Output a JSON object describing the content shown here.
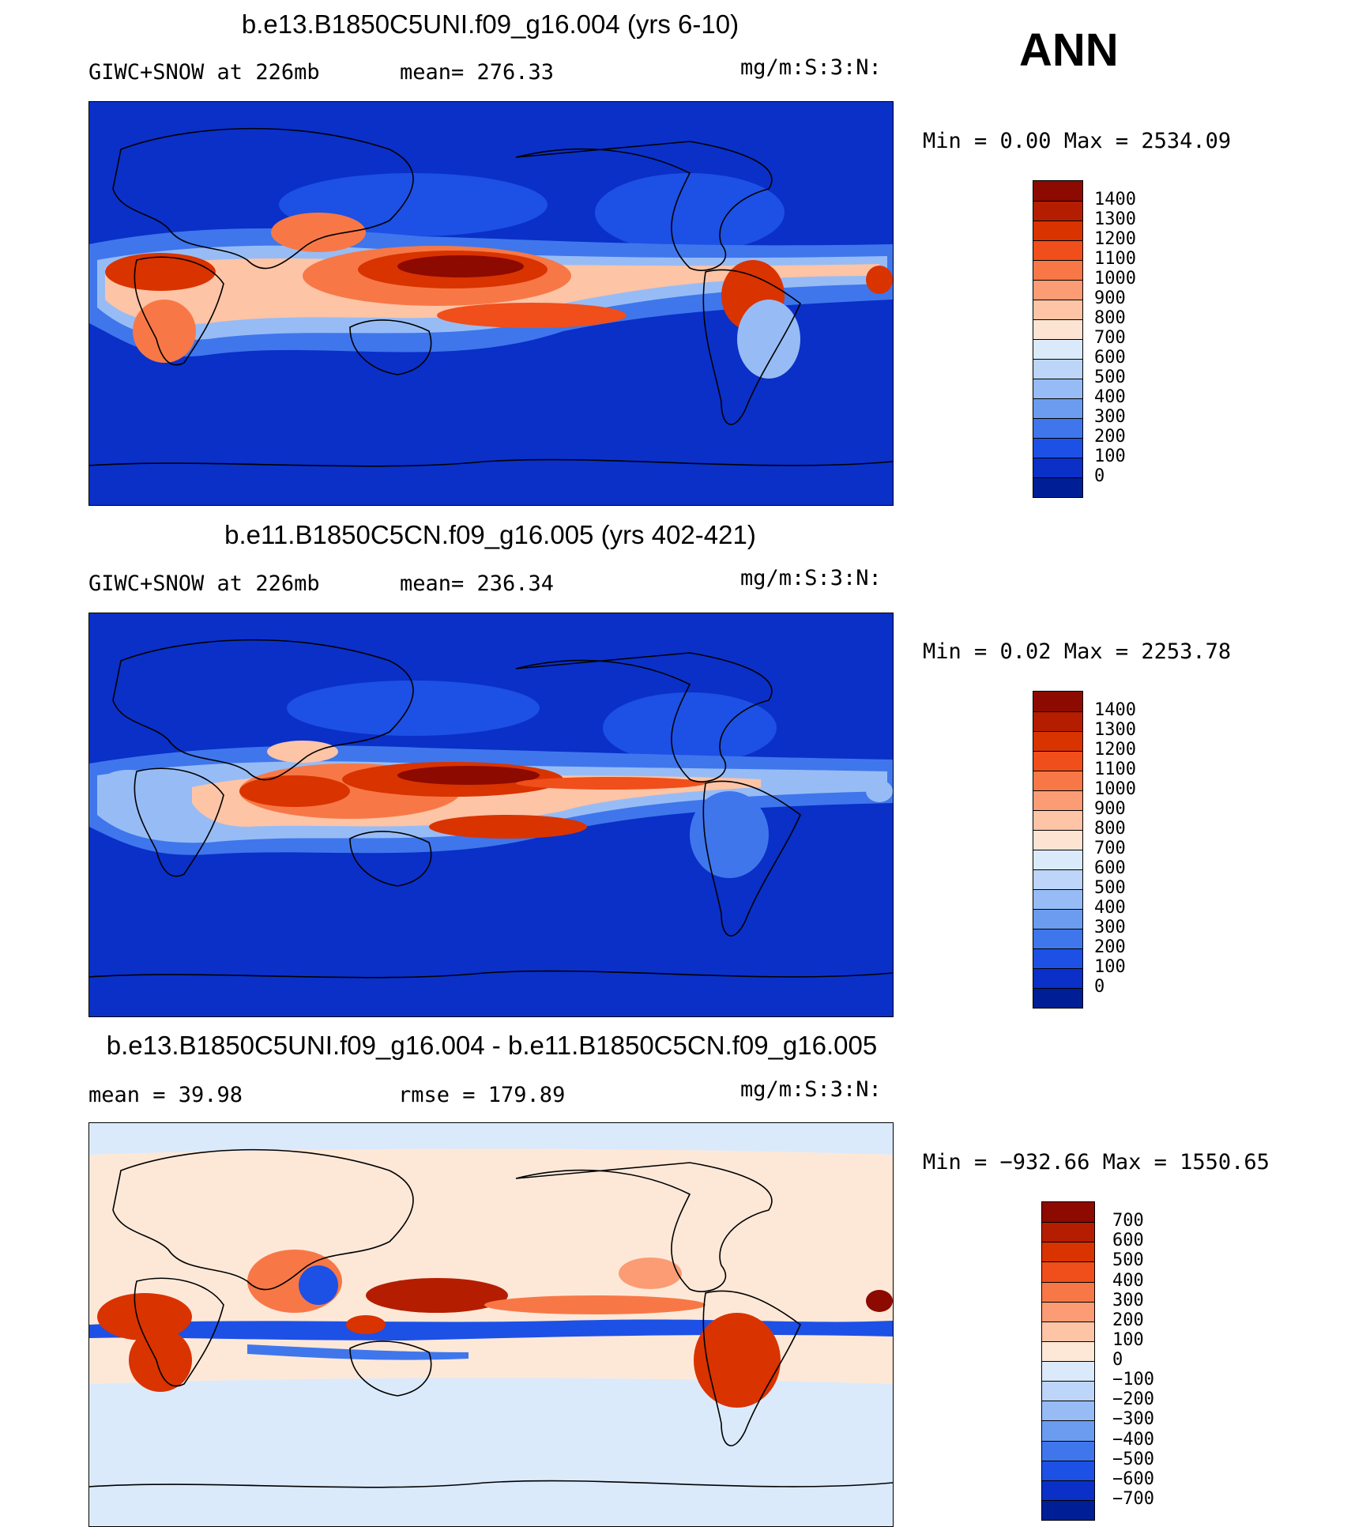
{
  "season": "ANN",
  "units": "mg/m:S:3:N:",
  "panels": [
    {
      "title": "b.e13.B1850C5UNI.f09_g16.004 (yrs 6-10)",
      "subtitle_left": "GIWC+SNOW at 226mb",
      "subtitle_mid": "mean= 276.33",
      "units": "mg/m:S:3:N:",
      "minmax": "Min =    0.00 Max = 2534.09"
    },
    {
      "title": "b.e11.B1850C5CN.f09_g16.005 (yrs 402-421)",
      "subtitle_left": "GIWC+SNOW at 226mb",
      "subtitle_mid": "mean= 236.34",
      "units": "mg/m:S:3:N:",
      "minmax": "Min =    0.02 Max = 2253.78"
    },
    {
      "title": "b.e13.B1850C5UNI.f09_g16.004 - b.e11.B1850C5CN.f09_g16.005",
      "subtitle_left": "mean =   39.98",
      "subtitle_mid": "rmse = 179.89",
      "units": "mg/m:S:3:N:",
      "minmax": "Min = −932.66 Max = 1550.65"
    }
  ],
  "chart_data": [
    {
      "type": "heatmap",
      "variable": "GIWC+SNOW at 226mb",
      "mean": 276.33,
      "min": 0.0,
      "max": 2534.09,
      "colorbar": {
        "labels": [
          "1400",
          "1300",
          "1200",
          "1100",
          "1000",
          "900",
          "800",
          "700",
          "600",
          "500",
          "400",
          "300",
          "200",
          "100",
          "0"
        ],
        "colors": [
          "#8c0a00",
          "#b51d00",
          "#d93300",
          "#f04e1a",
          "#f77846",
          "#fb9c74",
          "#fdc4a6",
          "#fde4d2",
          "#dbeafb",
          "#bcd5f8",
          "#97bcf5",
          "#6c9cf0",
          "#3f76ec",
          "#1d50e5",
          "#0a30c8",
          "#001e96"
        ]
      }
    },
    {
      "type": "heatmap",
      "variable": "GIWC+SNOW at 226mb",
      "mean": 236.34,
      "min": 0.02,
      "max": 2253.78,
      "colorbar": {
        "labels": [
          "1400",
          "1300",
          "1200",
          "1100",
          "1000",
          "900",
          "800",
          "700",
          "600",
          "500",
          "400",
          "300",
          "200",
          "100",
          "0"
        ],
        "colors": [
          "#8c0a00",
          "#b51d00",
          "#d93300",
          "#f04e1a",
          "#f77846",
          "#fb9c74",
          "#fdc4a6",
          "#fde4d2",
          "#dbeafb",
          "#bcd5f8",
          "#97bcf5",
          "#6c9cf0",
          "#3f76ec",
          "#1d50e5",
          "#0a30c8",
          "#001e96"
        ]
      }
    },
    {
      "type": "heatmap",
      "variable": "difference",
      "mean": 39.98,
      "rmse": 179.89,
      "min": -932.66,
      "max": 1550.65,
      "colorbar": {
        "labels": [
          "700",
          "600",
          "500",
          "400",
          "300",
          "200",
          "100",
          "0",
          "−100",
          "−200",
          "−300",
          "−400",
          "−500",
          "−600",
          "−700"
        ],
        "colors": [
          "#8c0a00",
          "#b51d00",
          "#d93300",
          "#f04e1a",
          "#f77846",
          "#fb9c74",
          "#fdc4a6",
          "#fde8d8",
          "#dbeafb",
          "#bcd5f8",
          "#97bcf5",
          "#6c9cf0",
          "#3f76ec",
          "#1d50e5",
          "#0a30c8",
          "#001e96"
        ]
      }
    }
  ]
}
